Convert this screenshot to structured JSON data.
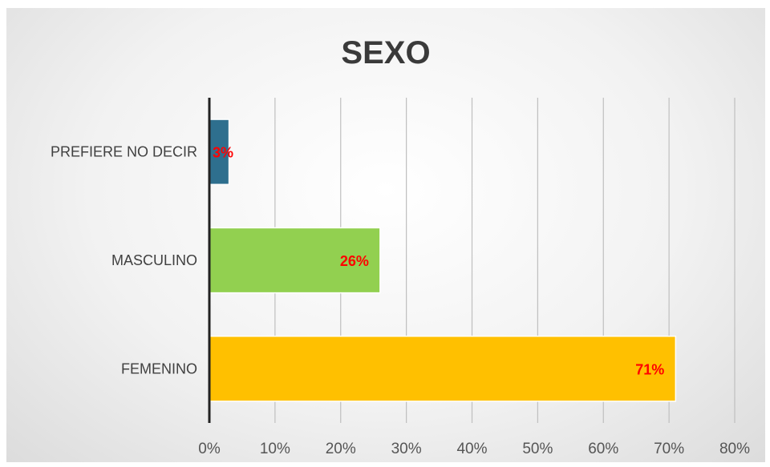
{
  "chart_data": {
    "type": "bar",
    "orientation": "horizontal",
    "title": "SEXO",
    "categories": [
      "PREFIERE NO DECIR",
      "MASCULINO",
      "FEMENINO"
    ],
    "values": [
      0.03,
      0.26,
      0.71
    ],
    "data_labels": [
      "3%",
      "26%",
      "71%"
    ],
    "bar_colors": [
      "#2e6f8e",
      "#92d050",
      "#ffc000"
    ],
    "data_label_color": "#ff0000",
    "xlim": [
      0,
      0.8
    ],
    "x_ticks": [
      0,
      0.1,
      0.2,
      0.3,
      0.4,
      0.5,
      0.6,
      0.7,
      0.8
    ],
    "x_tick_labels": [
      "0%",
      "10%",
      "20%",
      "30%",
      "40%",
      "50%",
      "60%",
      "70%",
      "80%"
    ],
    "grid": true,
    "legend": "none"
  }
}
